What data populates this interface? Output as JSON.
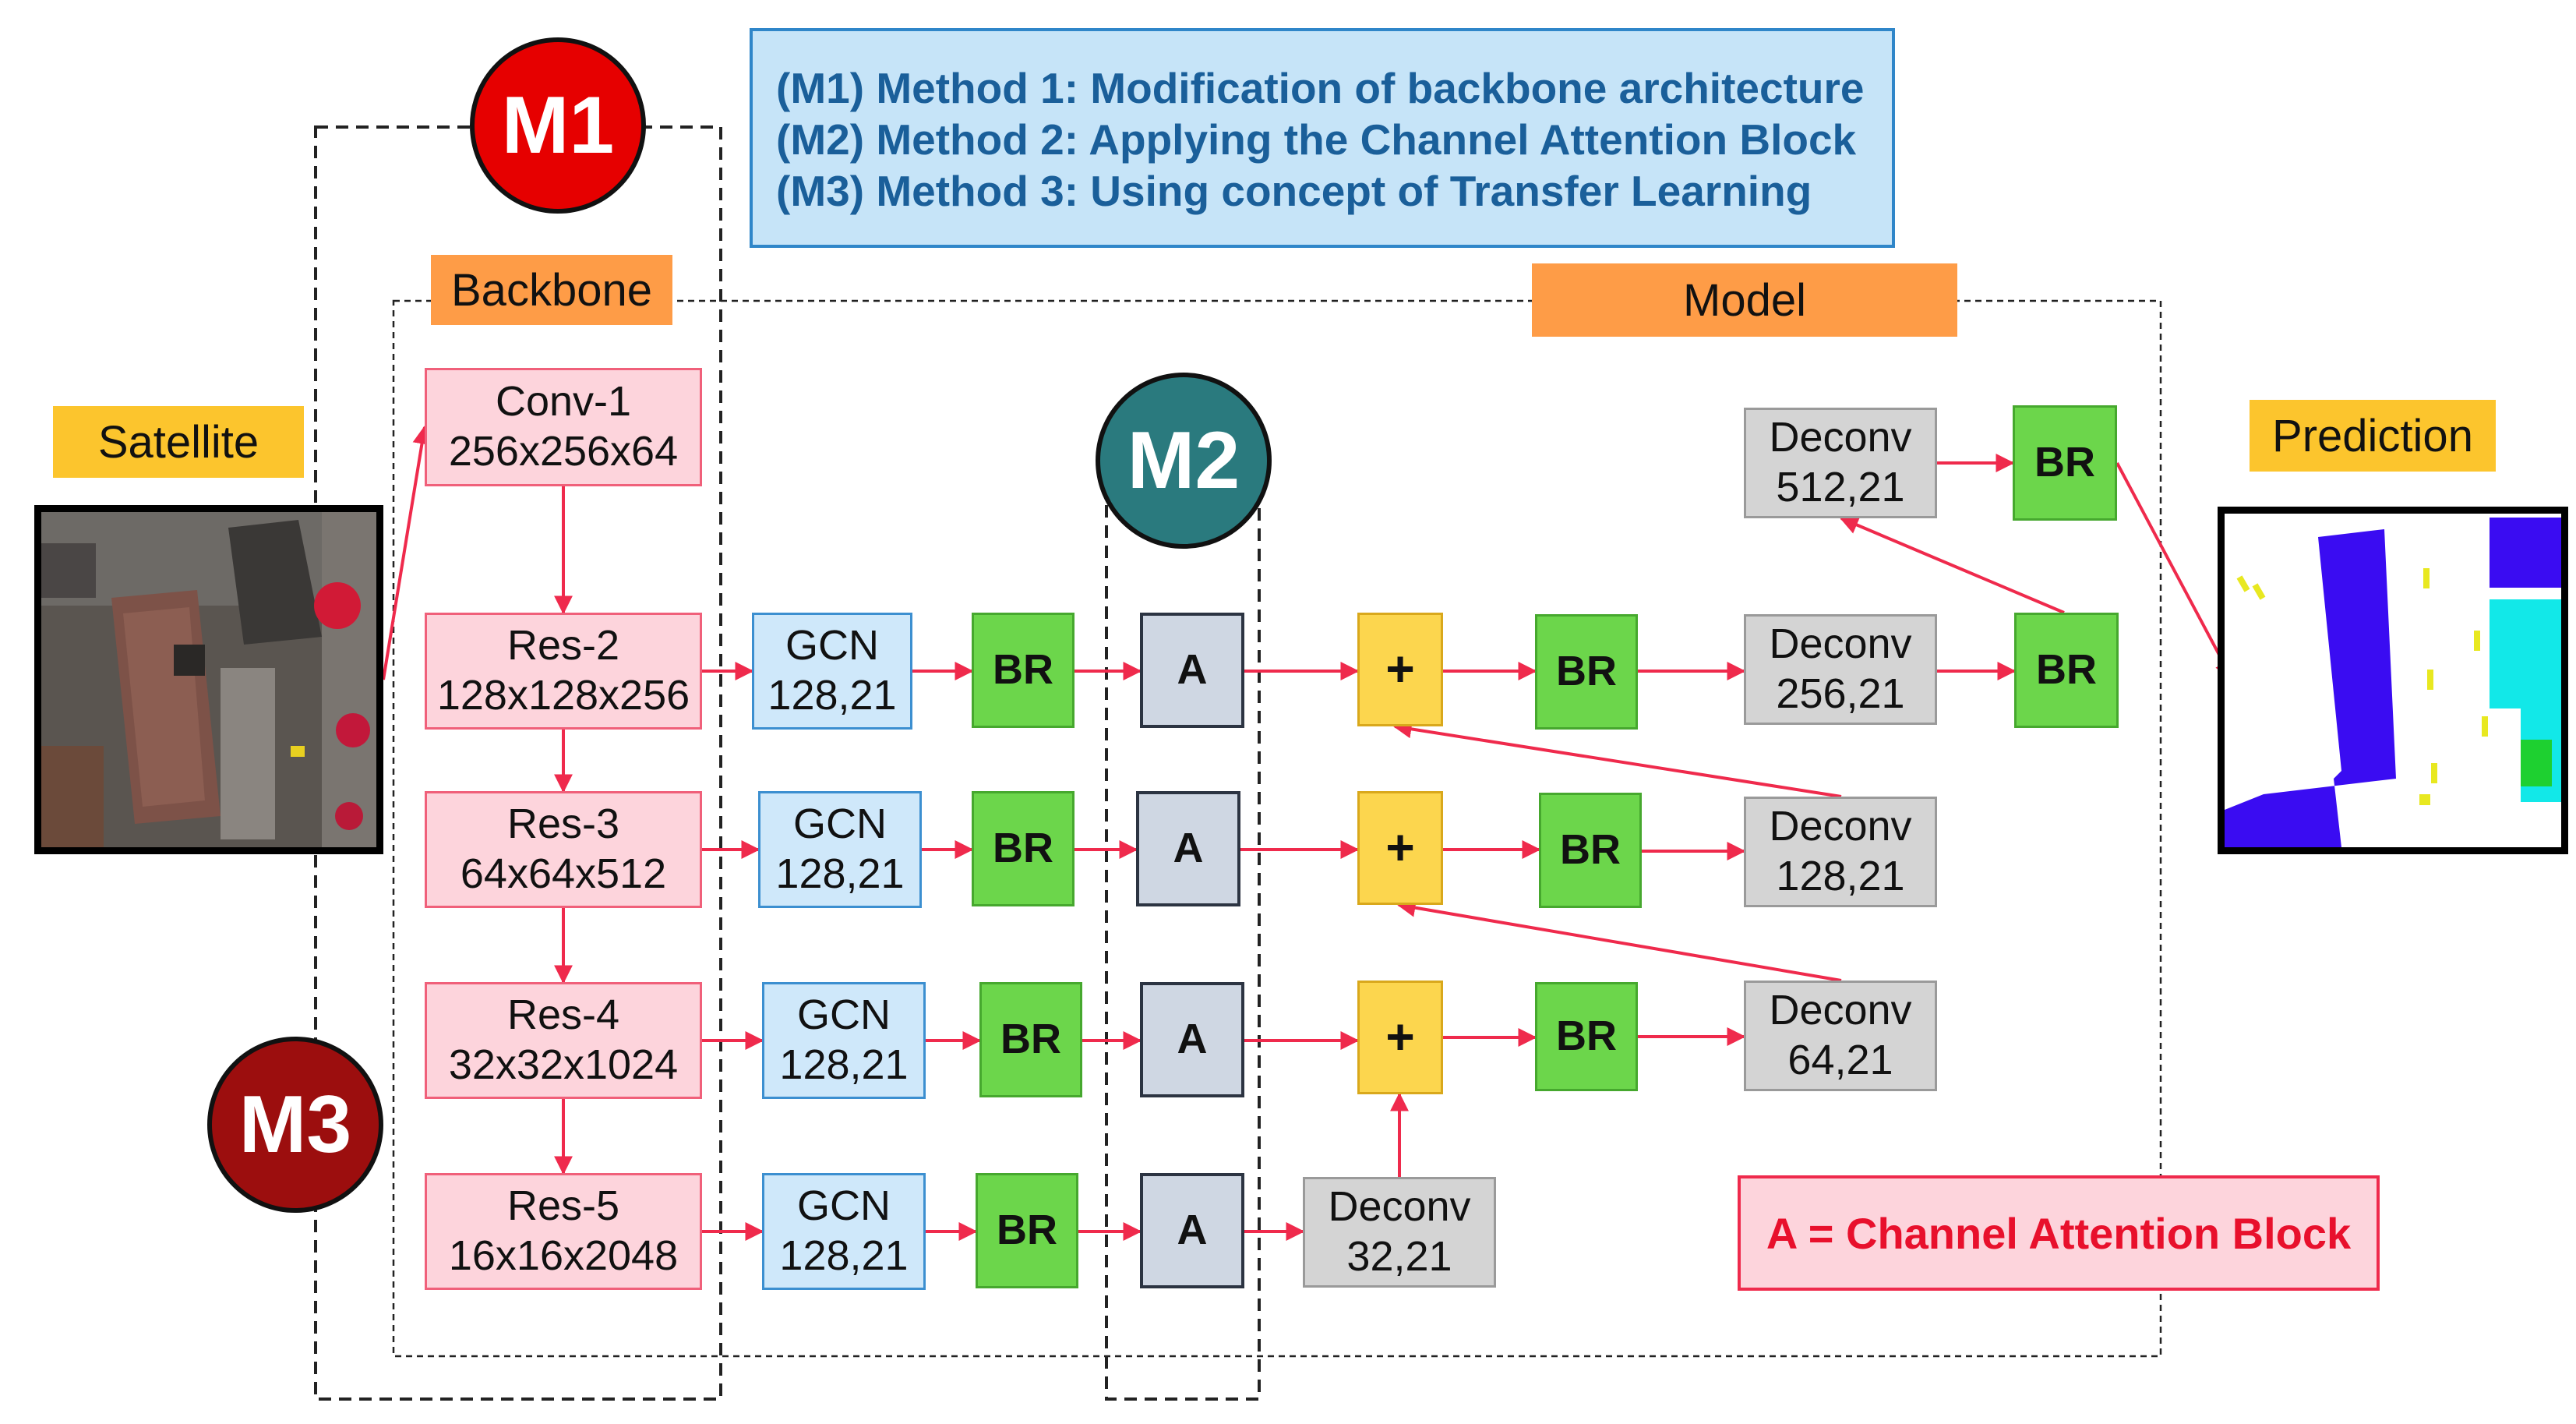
{
  "methods": [
    "(M1) Method 1: Modification of backbone architecture",
    "(M2) Method 2: Applying the Channel Attention Block",
    "(M3) Method 3: Using concept of Transfer Learning"
  ],
  "markers": {
    "m1": "M1",
    "m2": "M2",
    "m3": "M3"
  },
  "labels": {
    "backbone": "Backbone",
    "model": "Model",
    "satellite": "Satellite",
    "prediction": "Prediction"
  },
  "backbone": [
    {
      "name": "Conv-1",
      "dims": "256x256x64"
    },
    {
      "name": "Res-2",
      "dims": "128x128x256"
    },
    {
      "name": "Res-3",
      "dims": "64x64x512"
    },
    {
      "name": "Res-4",
      "dims": "32x32x1024"
    },
    {
      "name": "Res-5",
      "dims": "16x16x2048"
    }
  ],
  "gcn": {
    "name": "GCN",
    "params": "128,21"
  },
  "br": "BR",
  "attention": "A",
  "plus": "+",
  "deconv": [
    {
      "name": "Deconv",
      "params": "512,21"
    },
    {
      "name": "Deconv",
      "params": "256,21"
    },
    {
      "name": "Deconv",
      "params": "128,21"
    },
    {
      "name": "Deconv",
      "params": "64,21"
    },
    {
      "name": "Deconv",
      "params": "32,21"
    }
  ],
  "legend": "A = Channel Attention Block",
  "colors": {
    "arrow": "#ef2a4c",
    "m1": "#e60000",
    "m2": "#2a7a7e",
    "m3": "#9c0e0e",
    "method_text": "#1a5f9a"
  }
}
